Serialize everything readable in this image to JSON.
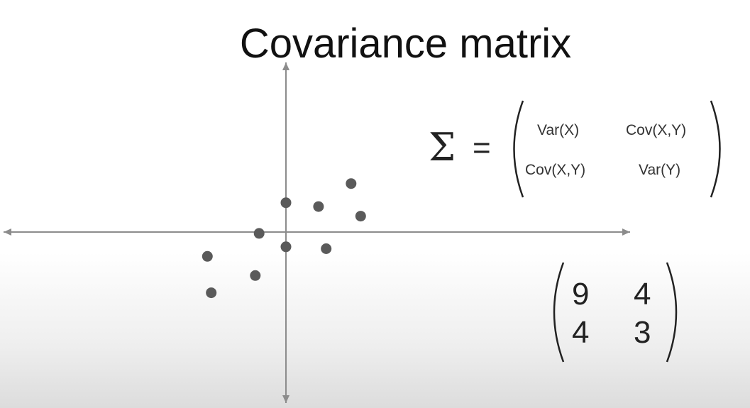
{
  "title": "Covariance matrix",
  "formula": {
    "symbol": "Σ",
    "equals": "=",
    "cells": [
      [
        "Var(X)",
        "Cov(X,Y)"
      ],
      [
        "Cov(X,Y)",
        "Var(Y)"
      ]
    ]
  },
  "example_matrix": [
    [
      "9",
      "4"
    ],
    [
      "4",
      "3"
    ]
  ],
  "scatter": {
    "points": [
      {
        "x": 0,
        "y": 1.9
      },
      {
        "x": 1.7,
        "y": 1.7
      },
      {
        "x": 3.4,
        "y": 2.9
      },
      {
        "x": 3.9,
        "y": 1.2
      },
      {
        "x": -1.4,
        "y": 0.3
      },
      {
        "x": 0,
        "y": -0.4
      },
      {
        "x": 2.1,
        "y": -0.5
      },
      {
        "x": -4.1,
        "y": -0.9
      },
      {
        "x": -1.6,
        "y": -1.9
      },
      {
        "x": -3.9,
        "y": -2.8
      }
    ],
    "point_color": "#5a5a5a",
    "axis_color": "#8c8c8c"
  }
}
